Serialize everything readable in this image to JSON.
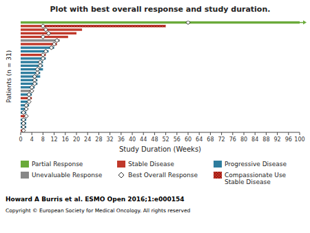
{
  "chart_data": {
    "type": "bar",
    "orientation": "horizontal",
    "stacked": true,
    "grid": false,
    "legend": "bottom",
    "title": "Plot with best overall response and study duration.",
    "x_label": "Study Duration (Weeks)",
    "y_label": "Patients (n = 31)",
    "xlim": [
      0,
      100
    ],
    "xticks": [
      0,
      4,
      8,
      12,
      16,
      20,
      24,
      28,
      32,
      36,
      40,
      44,
      48,
      52,
      56,
      60,
      64,
      68,
      72,
      76,
      80,
      84,
      88,
      92,
      96,
      100
    ],
    "categories": [
      null,
      null,
      null,
      null,
      null,
      null,
      null,
      null,
      null,
      null,
      null,
      null,
      null,
      null,
      null,
      null,
      null,
      null,
      null,
      null,
      null,
      null,
      null,
      null,
      null,
      null,
      null,
      null,
      null,
      null,
      null
    ],
    "ongoing": [
      true,
      false,
      false,
      false,
      false,
      false,
      false,
      false,
      false,
      false,
      false,
      false,
      false,
      false,
      false,
      false,
      false,
      false,
      false,
      false,
      false,
      false,
      false,
      false,
      false,
      false,
      false,
      false,
      false,
      false,
      false
    ],
    "series": [
      {
        "name": "Partial Response",
        "type": "bar",
        "color": "#6aaa3a",
        "values": [
          100,
          null,
          null,
          null,
          null,
          null,
          null,
          null,
          null,
          null,
          null,
          null,
          null,
          null,
          null,
          null,
          null,
          null,
          null,
          null,
          null,
          null,
          null,
          null,
          null,
          null,
          null,
          null,
          null,
          null,
          null
        ]
      },
      {
        "name": "Stable Disease",
        "type": "bar",
        "color": "#c0392b",
        "values": [
          null,
          8,
          22,
          20,
          17,
          null,
          13,
          null,
          null,
          9,
          null,
          null,
          null,
          null,
          null,
          null,
          null,
          null,
          null,
          null,
          null,
          4,
          null,
          null,
          null,
          null,
          2,
          null,
          null,
          null,
          1
        ]
      },
      {
        "name": "Progressive Disease",
        "type": "bar",
        "color": "#2e7d9e",
        "values": [
          null,
          null,
          null,
          null,
          null,
          null,
          null,
          12,
          10,
          null,
          9,
          8,
          8,
          8,
          7,
          7,
          6,
          6,
          5,
          null,
          4,
          null,
          3,
          3,
          2,
          2,
          null,
          2,
          2,
          2,
          null
        ]
      },
      {
        "name": "Unevaluable Response",
        "type": "bar",
        "color": "#888888",
        "values": [
          null,
          null,
          null,
          null,
          null,
          14,
          null,
          null,
          null,
          null,
          null,
          null,
          null,
          null,
          null,
          null,
          null,
          null,
          null,
          4,
          null,
          null,
          null,
          null,
          null,
          null,
          null,
          null,
          null,
          null,
          null
        ]
      },
      {
        "name": "Best Overall Response",
        "type": "scatter",
        "marker": "diamond",
        "color": "#ffffff",
        "values": [
          60,
          8,
          9,
          10,
          8,
          13,
          12,
          11,
          9,
          8,
          8,
          7,
          7,
          6,
          6,
          5,
          5,
          5,
          4,
          4,
          3,
          3,
          3,
          2,
          2,
          1,
          2,
          1,
          1,
          1,
          1
        ]
      },
      {
        "name": "Compassionate Use\nStable Disease",
        "type": "hatched-bar",
        "color": "#c0392b",
        "values": [
          null,
          44,
          null,
          null,
          null,
          null,
          null,
          null,
          null,
          null,
          null,
          null,
          null,
          null,
          null,
          null,
          null,
          null,
          null,
          null,
          null,
          null,
          null,
          null,
          null,
          null,
          null,
          null,
          null,
          null,
          null
        ]
      }
    ],
    "annotations": [
      "Howard A Burris et al. ESMO Open 2016;1:e000154",
      "Copyright © European Society for Medical Oncology. All rights reserved"
    ]
  }
}
